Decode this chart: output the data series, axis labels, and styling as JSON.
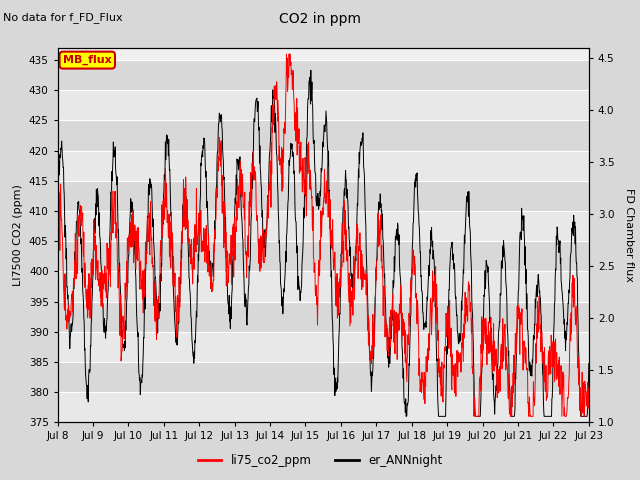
{
  "title": "CO2 in ppm",
  "subtitle": "No data for f_FD_Flux",
  "ylabel_left": "LI7500 CO2 (ppm)",
  "ylabel_right": "FD Chamber flux",
  "ylim_left": [
    375,
    437
  ],
  "ylim_right": [
    1.0,
    4.6
  ],
  "yticks_left": [
    375,
    380,
    385,
    390,
    395,
    400,
    405,
    410,
    415,
    420,
    425,
    430,
    435
  ],
  "yticks_right": [
    1.0,
    1.5,
    2.0,
    2.5,
    3.0,
    3.5,
    4.0,
    4.5
  ],
  "xtick_labels": [
    "Jul 8",
    "Jul 9",
    "Jul 10",
    "Jul 11",
    "Jul 12",
    "Jul 13",
    "Jul 14",
    "Jul 15",
    "Jul 16",
    "Jul 17",
    "Jul 18",
    "Jul 19",
    "Jul 20",
    "Jul 21",
    "Jul 22",
    "Jul 23"
  ],
  "color_red": "#ff0000",
  "color_black": "#000000",
  "legend_label1": "li75_co2_ppm",
  "legend_label2": "er_ANNnight",
  "mb_flux_box_color": "#ffff00",
  "mb_flux_text_color": "#cc0000",
  "mb_flux_border_color": "#cc0000",
  "background_color": "#d8d8d8",
  "plot_bg_color": "#f0f0f0",
  "grid_color": "#ffffff",
  "band_color_light": "#e8e8e8",
  "band_color_dark": "#d0d0d0"
}
